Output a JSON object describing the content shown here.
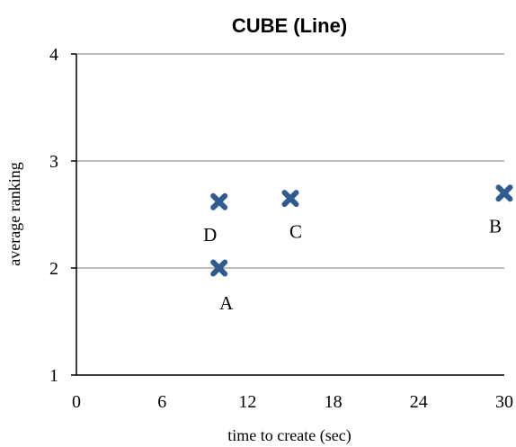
{
  "chart_data": {
    "type": "scatter",
    "title": "CUBE (Line)",
    "xlabel": "time to create (sec)",
    "ylabel": "average ranking",
    "xlim": [
      0,
      30
    ],
    "ylim": [
      1,
      4
    ],
    "xticks": [
      0,
      6,
      12,
      18,
      24,
      30
    ],
    "yticks": [
      1,
      2,
      3,
      4
    ],
    "grid": "horizontal",
    "marker": "x",
    "marker_color": "#2f5b8f",
    "gridline_color": "#a6a6a6",
    "points": [
      {
        "label": "A",
        "x": 10,
        "y": 2.0,
        "label_pos": "below-right"
      },
      {
        "label": "B",
        "x": 30,
        "y": 2.7,
        "label_pos": "below-left"
      },
      {
        "label": "C",
        "x": 15,
        "y": 2.65,
        "label_pos": "below"
      },
      {
        "label": "D",
        "x": 10,
        "y": 2.62,
        "label_pos": "below-left"
      }
    ]
  }
}
